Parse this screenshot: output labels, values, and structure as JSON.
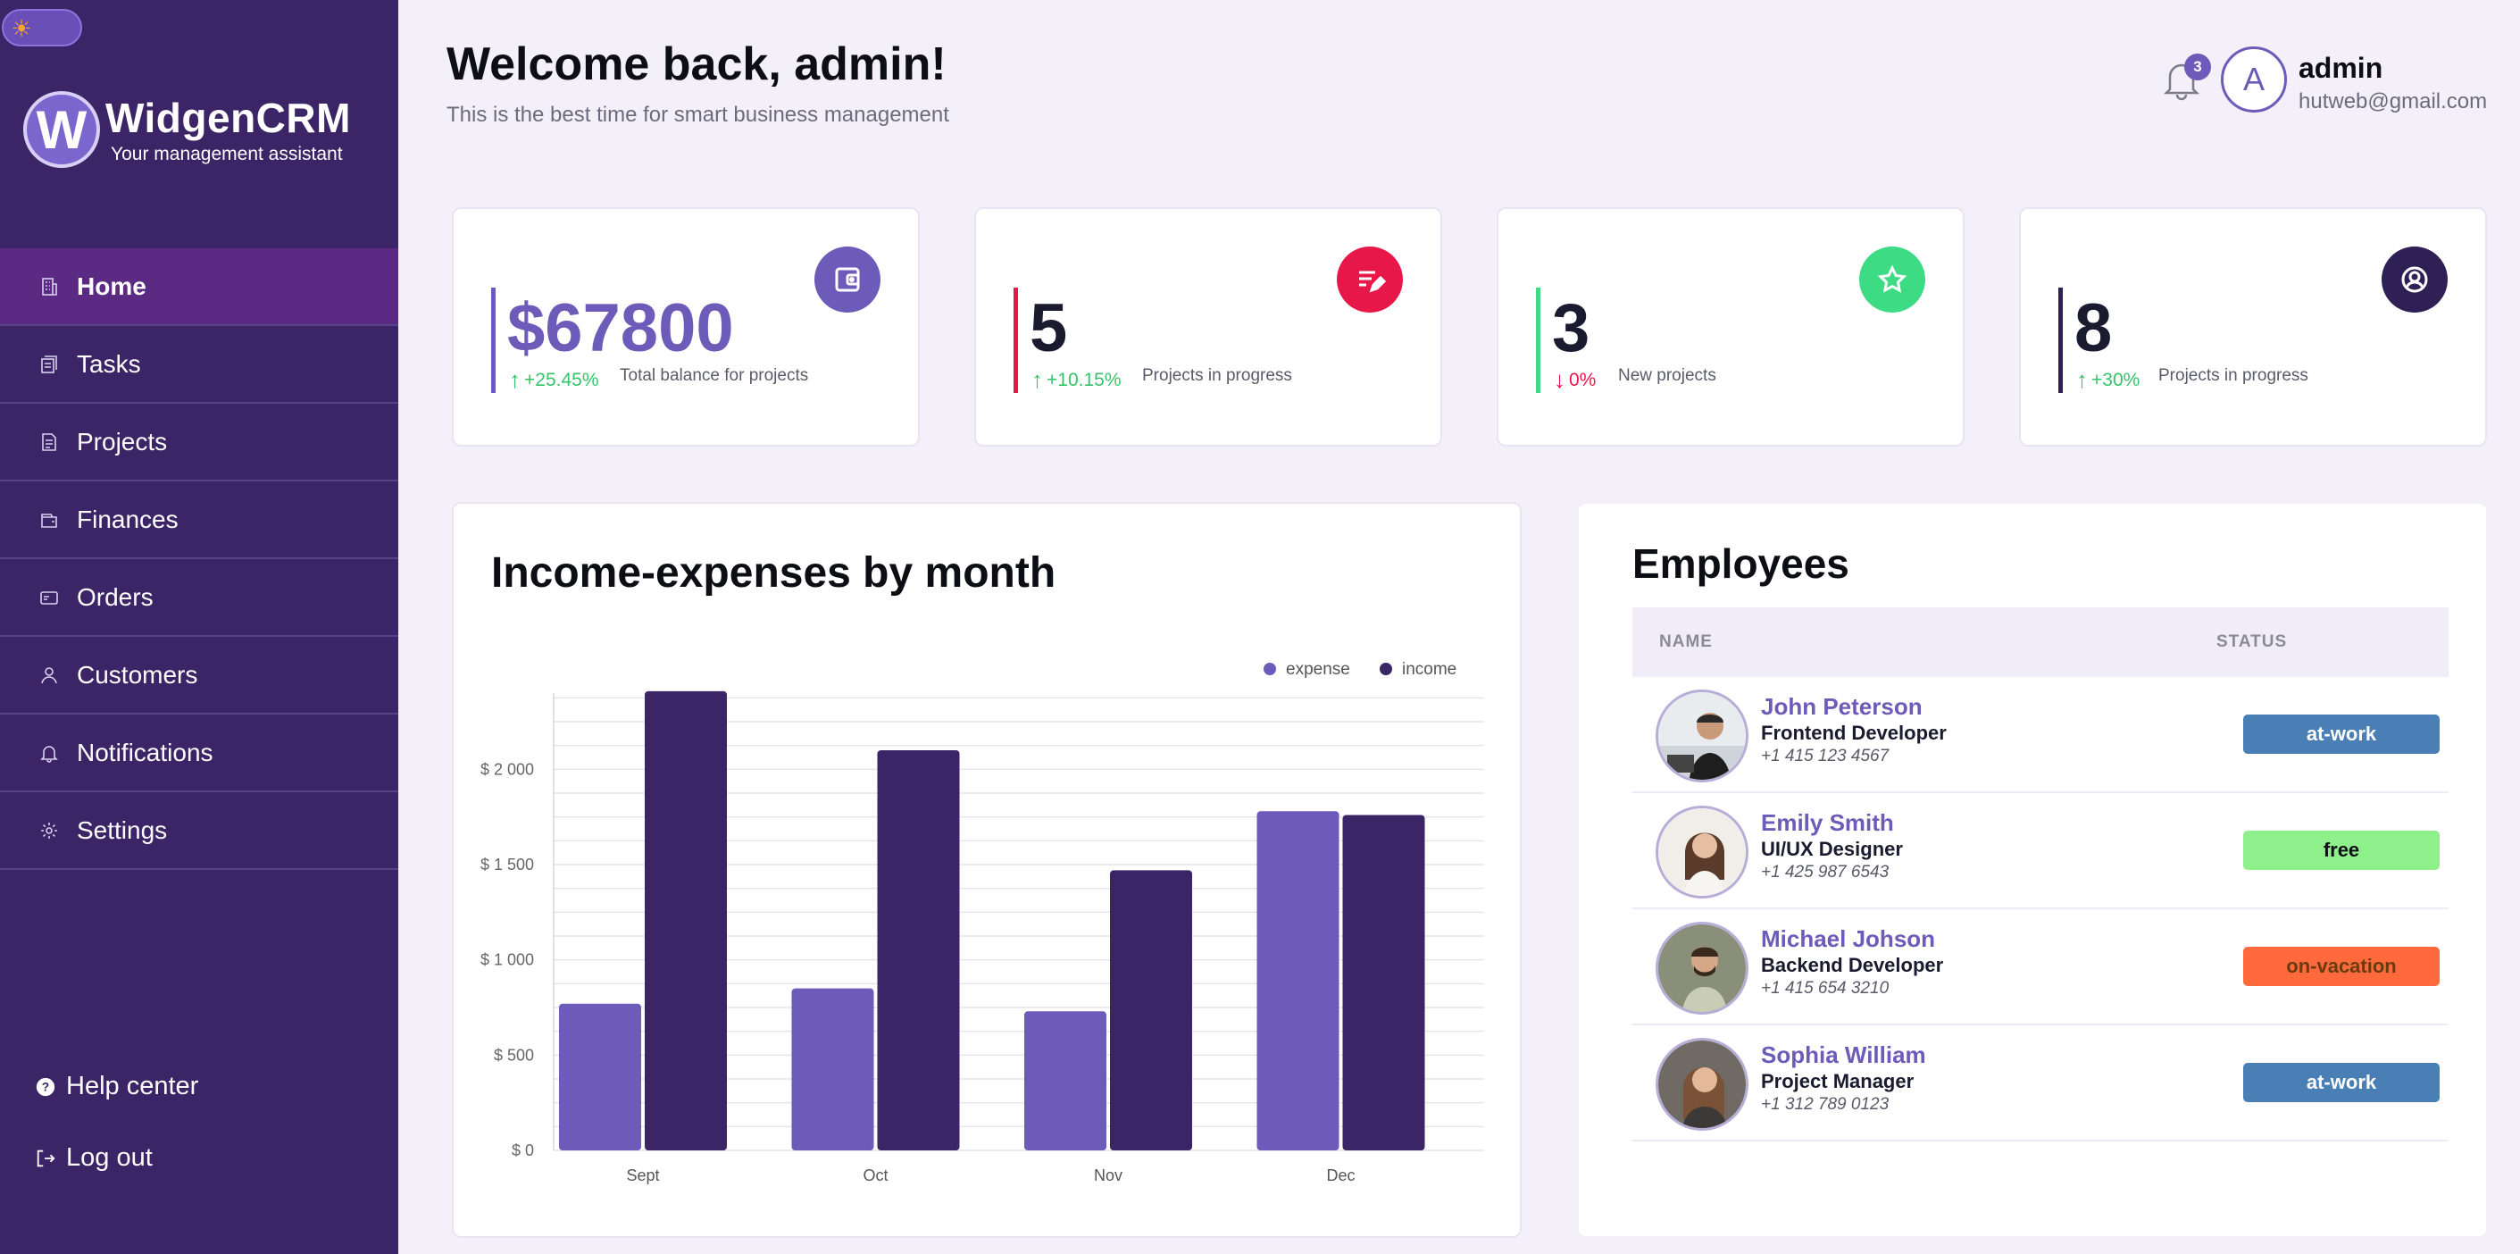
{
  "app": {
    "brand": "WidgenCRM",
    "brand_tagline": "Your management assistant",
    "brand_logo_letter": "W"
  },
  "sidebar": {
    "items": [
      {
        "label": "Home",
        "icon": "building-icon",
        "active": true
      },
      {
        "label": "Tasks",
        "icon": "tasks-icon"
      },
      {
        "label": "Projects",
        "icon": "document-icon"
      },
      {
        "label": "Finances",
        "icon": "wallet-icon"
      },
      {
        "label": "Orders",
        "icon": "card-icon"
      },
      {
        "label": "Customers",
        "icon": "user-icon"
      },
      {
        "label": "Notifications",
        "icon": "bell-icon"
      },
      {
        "label": "Settings",
        "icon": "gear-icon"
      }
    ],
    "help": "Help center",
    "logout": "Log out"
  },
  "header": {
    "welcome": "Welcome back, admin!",
    "tagline": "This is the best time for smart business management",
    "notifications_count": "3",
    "avatar_letter": "A",
    "user_name": "admin",
    "user_email": "hutweb@gmail.com"
  },
  "stats": [
    {
      "value": "$67800",
      "change": "+25.45%",
      "direction": "up",
      "desc": "Total balance for projects",
      "accent": "#6c5bb8",
      "icon": "wallet-icon"
    },
    {
      "value": "5",
      "change": "+10.15%",
      "direction": "up",
      "desc": "Projects in progress",
      "accent": "#e8174a",
      "icon": "edit-icon"
    },
    {
      "value": "3",
      "change": "0%",
      "direction": "down",
      "desc": "New projects",
      "accent": "#3ddc84",
      "icon": "star-icon"
    },
    {
      "value": "8",
      "change": "+30%",
      "direction": "up",
      "desc": "Projects in progress",
      "accent": "#2e1f55",
      "icon": "user-circle-icon"
    }
  ],
  "colors": {
    "up": "#35c46a",
    "down": "#e8174a",
    "expense": "#6c5bb8",
    "income": "#3b2566"
  },
  "chart_data": {
    "type": "bar",
    "title": "Income-expenses by month",
    "categories": [
      "Sept",
      "Oct",
      "Nov",
      "Dec"
    ],
    "series": [
      {
        "name": "expense",
        "values": [
          770,
          850,
          730,
          1780
        ]
      },
      {
        "name": "income",
        "values": [
          2410,
          2100,
          1470,
          1760
        ]
      }
    ],
    "ylim": [
      0,
      2400
    ],
    "y_ticks": [
      0,
      500,
      1000,
      1500,
      2000
    ],
    "y_tick_labels": [
      "$ 0",
      "$ 500",
      "$ 1 000",
      "$ 1 500",
      "$ 2 000"
    ],
    "legend_position": "top-right",
    "grid": true
  },
  "employees": {
    "title": "Employees",
    "columns": [
      "NAME",
      "STATUS"
    ],
    "rows": [
      {
        "name": "John Peterson",
        "role": "Frontend Developer",
        "phone": "+1 415 123 4567",
        "status": "at-work",
        "status_bg": "#4a7fb5",
        "status_fg": "#ffffff"
      },
      {
        "name": "Emily Smith",
        "role": "UI/UX Designer",
        "phone": "+1 425 987 6543",
        "status": "free",
        "status_bg": "#8ef08a",
        "status_fg": "#0d0d14"
      },
      {
        "name": "Michael Johson",
        "role": "Backend Developer",
        "phone": "+1 415 654 3210",
        "status": "on-vacation",
        "status_bg": "#ff6a3d",
        "status_fg": "#6b3a10"
      },
      {
        "name": "Sophia William",
        "role": "Project Manager",
        "phone": "+1 312 789 0123",
        "status": "at-work",
        "status_bg": "#4a7fb5",
        "status_fg": "#ffffff"
      }
    ]
  }
}
